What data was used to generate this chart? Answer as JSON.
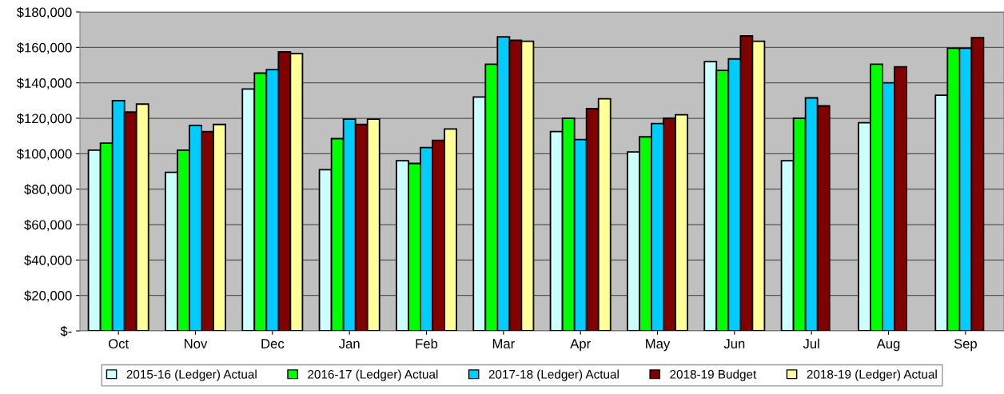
{
  "chart_data": {
    "type": "bar",
    "categories": [
      "Oct",
      "Nov",
      "Dec",
      "Jan",
      "Feb",
      "Mar",
      "Apr",
      "May",
      "Jun",
      "Jul",
      "Aug",
      "Sep"
    ],
    "series": [
      {
        "name": "2015-16 (Ledger) Actual",
        "color": "#ccffff",
        "values": [
          102000,
          89500,
          136500,
          91000,
          96000,
          132000,
          112500,
          101000,
          152000,
          96000,
          117500,
          133000
        ]
      },
      {
        "name": "2016-17 (Ledger) Actual",
        "color": "#00ff00",
        "values": [
          106000,
          102000,
          145500,
          108500,
          94500,
          150500,
          120000,
          109500,
          147000,
          120000,
          150500,
          159500
        ]
      },
      {
        "name": "2017-18 (Ledger) Actual",
        "color": "#00ccff",
        "values": [
          130000,
          116000,
          147500,
          119500,
          103500,
          166000,
          108000,
          117000,
          153500,
          131500,
          140000,
          159500
        ]
      },
      {
        "name": "2018-19 Budget",
        "color": "#800000",
        "values": [
          123500,
          112500,
          157500,
          116500,
          107500,
          164000,
          125500,
          120000,
          166500,
          127000,
          149000,
          165500
        ]
      },
      {
        "name": "2018-19 (Ledger) Actual",
        "color": "#ffff99",
        "values": [
          128000,
          116500,
          156500,
          119500,
          114000,
          163500,
          131000,
          122000,
          163500,
          null,
          null,
          null
        ]
      }
    ],
    "ylim": [
      0,
      180000
    ],
    "yticks": [
      {
        "value": 0,
        "label": "$-"
      },
      {
        "value": 20000,
        "label": "$20,000"
      },
      {
        "value": 40000,
        "label": "$40,000"
      },
      {
        "value": 60000,
        "label": "$60,000"
      },
      {
        "value": 80000,
        "label": "$80,000"
      },
      {
        "value": 100000,
        "label": "$100,000"
      },
      {
        "value": 120000,
        "label": "$120,000"
      },
      {
        "value": 140000,
        "label": "$140,000"
      },
      {
        "value": 160000,
        "label": "$160,000"
      },
      {
        "value": 180000,
        "label": "$180,000"
      }
    ],
    "grid": "y",
    "legend": "bottom"
  }
}
